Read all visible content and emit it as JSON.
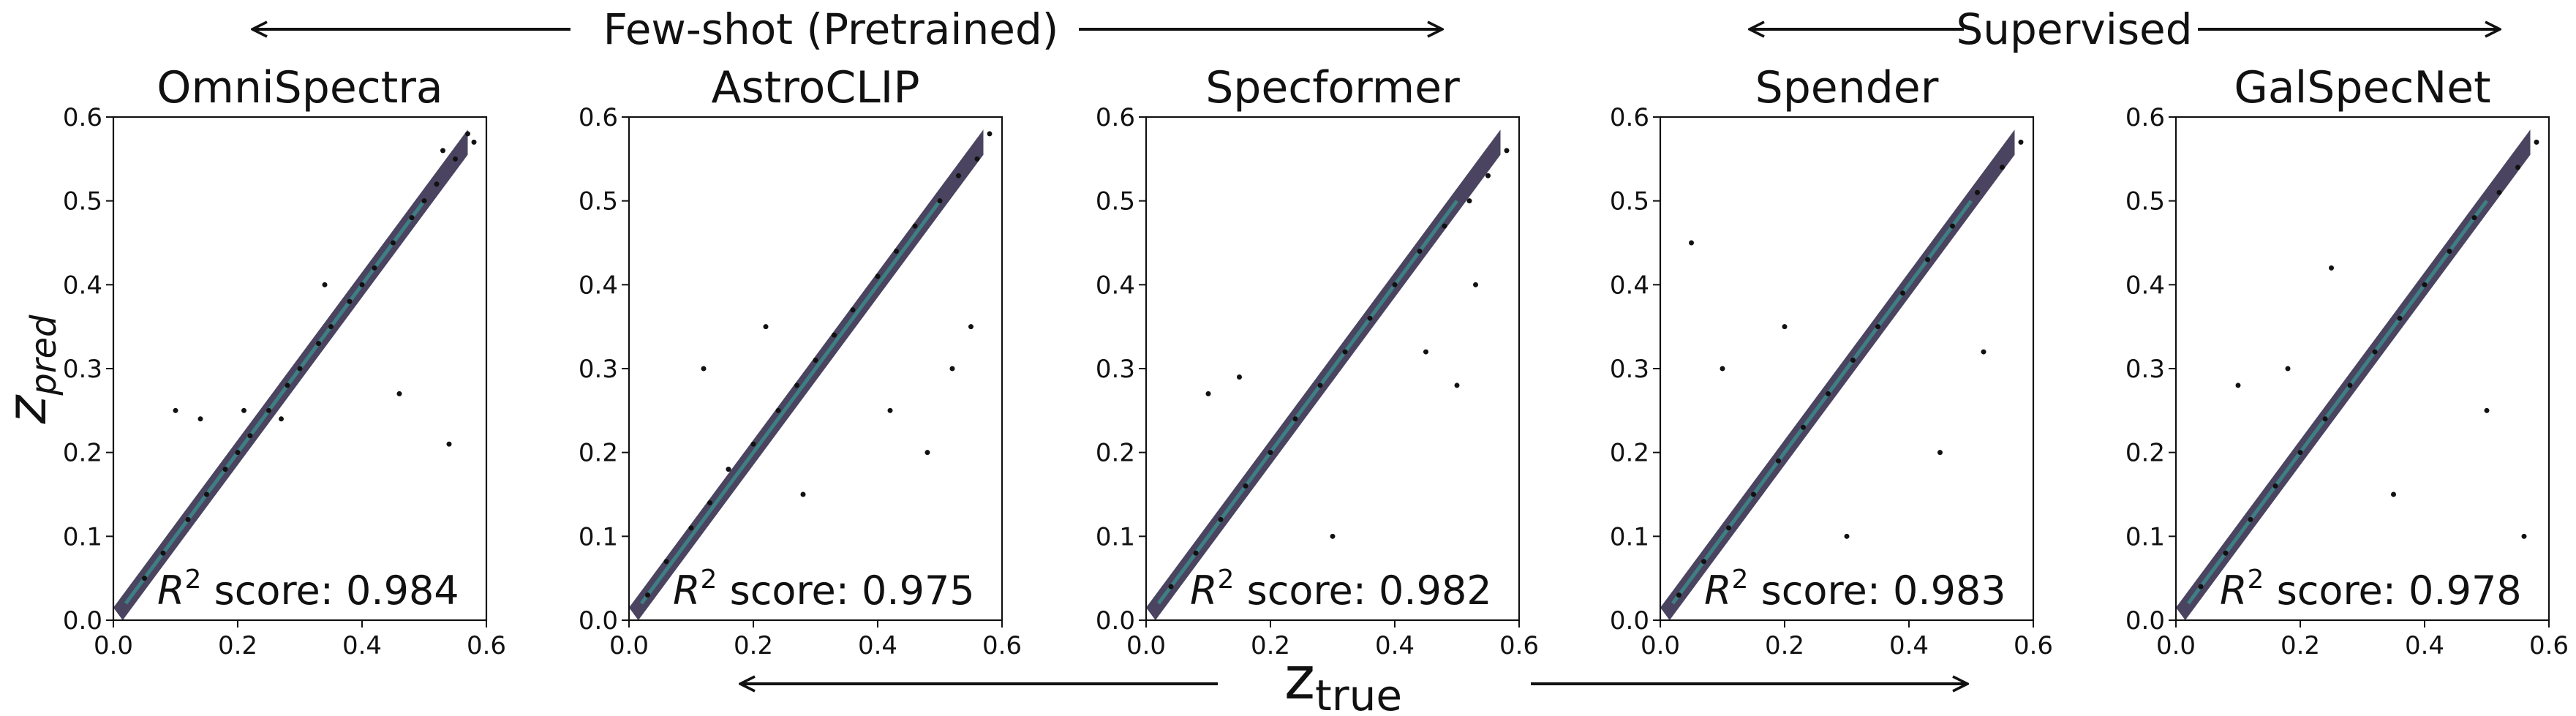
{
  "figure": {
    "group_labels": [
      {
        "text": "Few-shot (Pretrained)"
      },
      {
        "text": "Supervised"
      }
    ],
    "xlabel": {
      "main": "z",
      "sub": "true"
    },
    "ylabel": {
      "main": "z",
      "sub": "pred"
    }
  },
  "chart_data": [
    {
      "type": "scatter",
      "title": "OmniSpectra",
      "annotation": {
        "prefix": "R",
        "exponent": "2",
        "text": " score: 0.984"
      },
      "r2": 0.984,
      "xlim": [
        0.0,
        0.6
      ],
      "ylim": [
        0.0,
        0.6
      ],
      "xticks": [
        "0.0",
        "0.2",
        "0.4",
        "0.6"
      ],
      "yticks": [
        "0.0",
        "0.1",
        "0.2",
        "0.3",
        "0.4",
        "0.5",
        "0.6"
      ],
      "x": [
        0.05,
        0.08,
        0.12,
        0.15,
        0.18,
        0.2,
        0.22,
        0.25,
        0.28,
        0.3,
        0.33,
        0.35,
        0.38,
        0.4,
        0.42,
        0.45,
        0.48,
        0.5,
        0.52,
        0.55,
        0.58,
        0.1,
        0.14,
        0.21,
        0.27,
        0.34,
        0.46,
        0.54,
        0.57,
        0.53
      ],
      "y": [
        0.05,
        0.08,
        0.12,
        0.15,
        0.18,
        0.2,
        0.22,
        0.25,
        0.28,
        0.3,
        0.33,
        0.35,
        0.38,
        0.4,
        0.42,
        0.45,
        0.48,
        0.5,
        0.52,
        0.55,
        0.57,
        0.25,
        0.24,
        0.25,
        0.24,
        0.4,
        0.27,
        0.21,
        0.58,
        0.56
      ],
      "grid": false
    },
    {
      "type": "scatter",
      "title": "AstroCLIP",
      "annotation": {
        "prefix": "R",
        "exponent": "2",
        "text": " score: 0.975"
      },
      "r2": 0.975,
      "xlim": [
        0.0,
        0.6
      ],
      "ylim": [
        0.0,
        0.6
      ],
      "xticks": [
        "0.0",
        "0.2",
        "0.4",
        "0.6"
      ],
      "yticks": [
        "0.0",
        "0.1",
        "0.2",
        "0.3",
        "0.4",
        "0.5",
        "0.6"
      ],
      "x": [
        0.03,
        0.06,
        0.1,
        0.13,
        0.16,
        0.2,
        0.24,
        0.27,
        0.3,
        0.33,
        0.36,
        0.4,
        0.43,
        0.46,
        0.5,
        0.53,
        0.56,
        0.58,
        0.12,
        0.22,
        0.42,
        0.48,
        0.52,
        0.55,
        0.28
      ],
      "y": [
        0.03,
        0.07,
        0.11,
        0.14,
        0.18,
        0.21,
        0.25,
        0.28,
        0.31,
        0.34,
        0.37,
        0.41,
        0.44,
        0.47,
        0.5,
        0.53,
        0.55,
        0.58,
        0.3,
        0.35,
        0.25,
        0.2,
        0.3,
        0.35,
        0.15
      ],
      "grid": false
    },
    {
      "type": "scatter",
      "title": "Specformer",
      "annotation": {
        "prefix": "R",
        "exponent": "2",
        "text": " score: 0.982"
      },
      "r2": 0.982,
      "xlim": [
        0.0,
        0.6
      ],
      "ylim": [
        0.0,
        0.6
      ],
      "xticks": [
        "0.0",
        "0.2",
        "0.4",
        "0.6"
      ],
      "yticks": [
        "0.0",
        "0.1",
        "0.2",
        "0.3",
        "0.4",
        "0.5",
        "0.6"
      ],
      "x": [
        0.04,
        0.08,
        0.12,
        0.16,
        0.2,
        0.24,
        0.28,
        0.32,
        0.36,
        0.4,
        0.44,
        0.48,
        0.52,
        0.55,
        0.58,
        0.1,
        0.15,
        0.3,
        0.45,
        0.5,
        0.53
      ],
      "y": [
        0.04,
        0.08,
        0.12,
        0.16,
        0.2,
        0.24,
        0.28,
        0.32,
        0.36,
        0.4,
        0.44,
        0.47,
        0.5,
        0.53,
        0.56,
        0.27,
        0.29,
        0.1,
        0.32,
        0.28,
        0.4
      ],
      "grid": false
    },
    {
      "type": "scatter",
      "title": "Spender",
      "annotation": {
        "prefix": "R",
        "exponent": "2",
        "text": " score: 0.983"
      },
      "r2": 0.983,
      "xlim": [
        0.0,
        0.6
      ],
      "ylim": [
        0.0,
        0.6
      ],
      "xticks": [
        "0.0",
        "0.2",
        "0.4",
        "0.6"
      ],
      "yticks": [
        "0.0",
        "0.1",
        "0.2",
        "0.3",
        "0.4",
        "0.5",
        "0.6"
      ],
      "x": [
        0.03,
        0.07,
        0.11,
        0.15,
        0.19,
        0.23,
        0.27,
        0.31,
        0.35,
        0.39,
        0.43,
        0.47,
        0.51,
        0.55,
        0.58,
        0.1,
        0.2,
        0.3,
        0.45,
        0.52,
        0.05
      ],
      "y": [
        0.03,
        0.07,
        0.11,
        0.15,
        0.19,
        0.23,
        0.27,
        0.31,
        0.35,
        0.39,
        0.43,
        0.47,
        0.51,
        0.54,
        0.57,
        0.3,
        0.35,
        0.1,
        0.2,
        0.32,
        0.45
      ],
      "grid": false
    },
    {
      "type": "scatter",
      "title": "GalSpecNet",
      "annotation": {
        "prefix": "R",
        "exponent": "2",
        "text": " score: 0.978"
      },
      "r2": 0.978,
      "xlim": [
        0.0,
        0.6
      ],
      "ylim": [
        0.0,
        0.6
      ],
      "xticks": [
        "0.0",
        "0.2",
        "0.4",
        "0.6"
      ],
      "yticks": [
        "0.0",
        "0.1",
        "0.2",
        "0.3",
        "0.4",
        "0.5",
        "0.6"
      ],
      "x": [
        0.04,
        0.08,
        0.12,
        0.16,
        0.2,
        0.24,
        0.28,
        0.32,
        0.36,
        0.4,
        0.44,
        0.48,
        0.52,
        0.55,
        0.58,
        0.1,
        0.18,
        0.35,
        0.5,
        0.56,
        0.25
      ],
      "y": [
        0.04,
        0.08,
        0.12,
        0.16,
        0.2,
        0.24,
        0.28,
        0.32,
        0.36,
        0.4,
        0.44,
        0.48,
        0.51,
        0.54,
        0.57,
        0.28,
        0.3,
        0.15,
        0.25,
        0.1,
        0.42
      ],
      "grid": false
    }
  ]
}
